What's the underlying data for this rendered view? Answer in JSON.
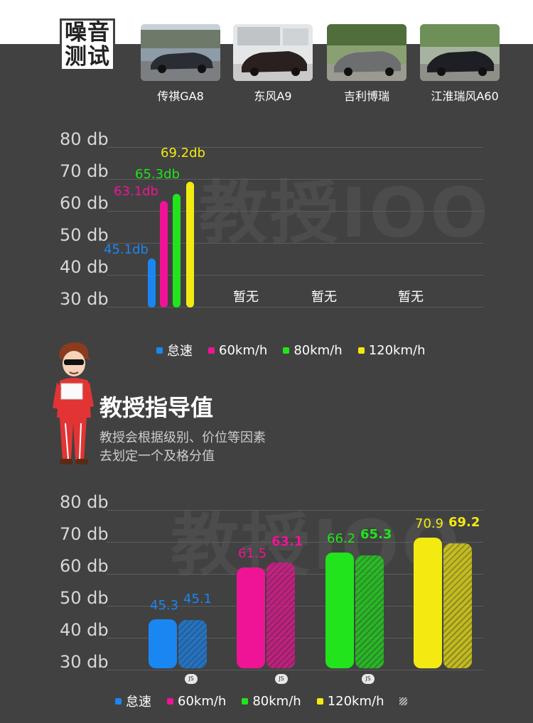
{
  "header": {
    "title_line1": "噪音",
    "title_line2": "测试"
  },
  "cars": [
    {
      "name": "传祺GA8"
    },
    {
      "name": "东风A9"
    },
    {
      "name": "吉利博瑞"
    },
    {
      "name": "江淮瑞风A60"
    }
  ],
  "watermark": "教授IOO",
  "chart_data": [
    {
      "type": "bar",
      "y_tick_labels": [
        "80 db",
        "70 db",
        "60 db",
        "50 db",
        "40 db",
        "30 db"
      ],
      "ylim": [
        30,
        80
      ],
      "series": [
        {
          "name": "怠速",
          "color": "#1a86f2",
          "values": [
            45.1,
            null,
            null,
            null
          ],
          "value_labels": [
            "45.1db",
            null,
            null,
            null
          ]
        },
        {
          "name": "60km/h",
          "color": "#ef1496",
          "values": [
            63.1,
            null,
            null,
            null
          ],
          "value_labels": [
            "63.1db",
            null,
            null,
            null
          ]
        },
        {
          "name": "80km/h",
          "color": "#21e41c",
          "values": [
            65.3,
            null,
            null,
            null
          ],
          "value_labels": [
            "65.3db",
            null,
            null,
            null
          ]
        },
        {
          "name": "120km/h",
          "color": "#f3ea12",
          "values": [
            69.2,
            null,
            null,
            null
          ],
          "value_labels": [
            "69.2db",
            null,
            null,
            null
          ]
        }
      ],
      "no_data_labels": [
        "暂无",
        "暂无",
        "暂无"
      ],
      "legend": [
        "怠速",
        "60km/h",
        "80km/h",
        "120km/h"
      ]
    },
    {
      "type": "bar",
      "y_tick_labels": [
        "80 db",
        "70 db",
        "60 db",
        "50 db",
        "40 db",
        "30 db"
      ],
      "ylim": [
        30,
        80
      ],
      "groups": [
        {
          "name": "怠速",
          "color": "#1a86f2",
          "guide": 45.3,
          "actual": 45.1,
          "guide_label": "45.3",
          "actual_label": "45.1"
        },
        {
          "name": "60km/h",
          "color": "#ef1496",
          "guide": 61.5,
          "actual": 63.1,
          "guide_label": "61.5",
          "actual_label": "63.1"
        },
        {
          "name": "80km/h",
          "color": "#21e41c",
          "guide": 66.2,
          "actual": 65.3,
          "guide_label": "66.2",
          "actual_label": "65.3"
        },
        {
          "name": "120km/h",
          "color": "#f3ea12",
          "guide": 70.9,
          "actual": 69.2,
          "guide_label": "70.9",
          "actual_label": "69.2"
        }
      ],
      "js_tags": [
        "JS",
        "JS",
        "JS"
      ],
      "legend": [
        "怠速",
        "60km/h",
        "80km/h",
        "120km/h"
      ]
    }
  ],
  "professor": {
    "title": "教授指导值",
    "desc_line1": "教授会根据级别、价位等因素",
    "desc_line2": "去划定一个及格分值"
  }
}
